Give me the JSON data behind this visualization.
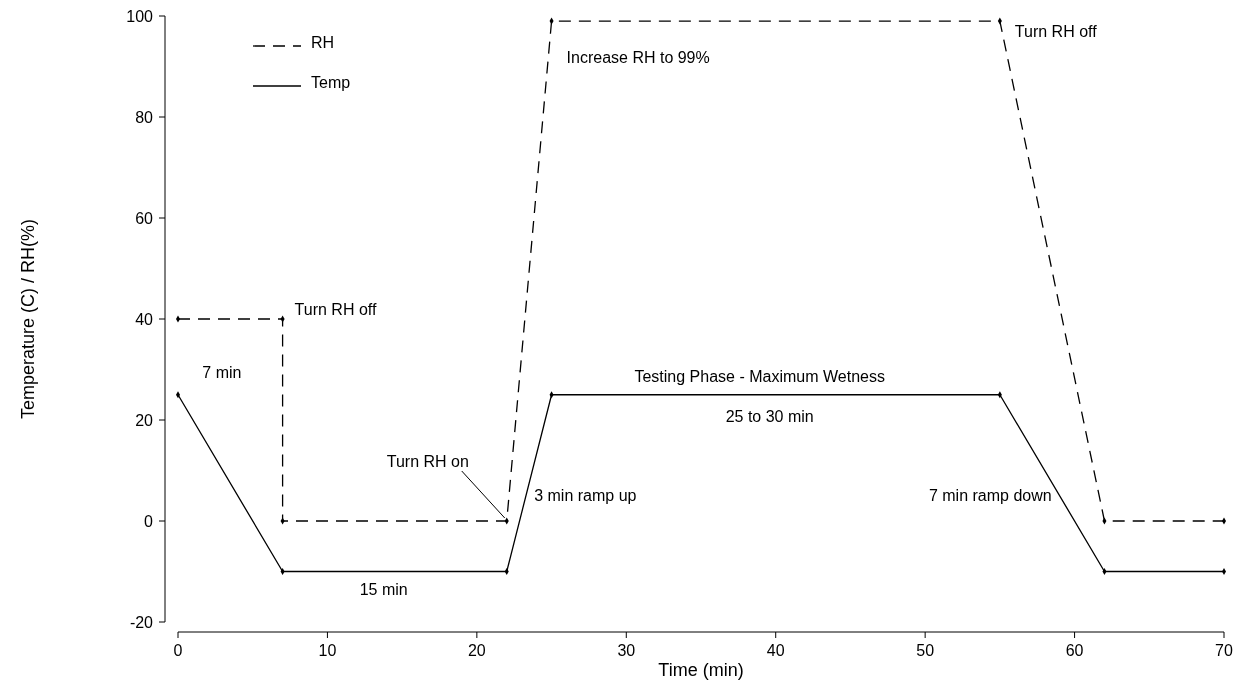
{
  "chart_data": {
    "type": "line",
    "xlabel": "Time (min)",
    "ylabel": "Temperature (C) / RH(%)",
    "xlim": [
      0,
      70
    ],
    "xticks": [
      0,
      10,
      20,
      30,
      40,
      50,
      60,
      70
    ],
    "ylim": [
      -20,
      100
    ],
    "yticks": [
      -20,
      0,
      20,
      40,
      60,
      80,
      100
    ],
    "grid": false,
    "legend": "top left",
    "marker": "diamond",
    "series": [
      {
        "name": "RH",
        "color": "#000000",
        "line_style": "dashed",
        "x": [
          0,
          7,
          7,
          22,
          25,
          55,
          62,
          70
        ],
        "values": [
          40,
          40,
          0,
          0,
          99,
          99,
          0,
          0
        ]
      },
      {
        "name": "Temp",
        "color": "#000000",
        "line_style": "solid",
        "x": [
          0,
          7,
          22,
          25,
          55,
          62,
          70
        ],
        "values": [
          25,
          -10,
          -10,
          25,
          25,
          -10,
          -10
        ]
      }
    ],
    "annotations": [
      {
        "text": "7 min",
        "x": 3.5,
        "y": 40
      },
      {
        "text": "Turn RH off",
        "x": 7,
        "y": 40
      },
      {
        "text": "Turn RH on",
        "x": 22,
        "y": 0
      },
      {
        "text": "15 min",
        "x": 14.5,
        "y": -10
      },
      {
        "text": "3 min ramp up",
        "x": 23.3,
        "y": 5
      },
      {
        "text": "Increase RH to 99%",
        "x": 25,
        "y": 99
      },
      {
        "text": "Testing Phase - Maximum Wetness",
        "x": 40,
        "y": 25
      },
      {
        "text": "25 to 30 min",
        "x": 40,
        "y": 25
      },
      {
        "text": "Turn RH off",
        "x": 55,
        "y": 99
      },
      {
        "text": "7 min ramp down",
        "x": 59,
        "y": 5
      }
    ]
  }
}
